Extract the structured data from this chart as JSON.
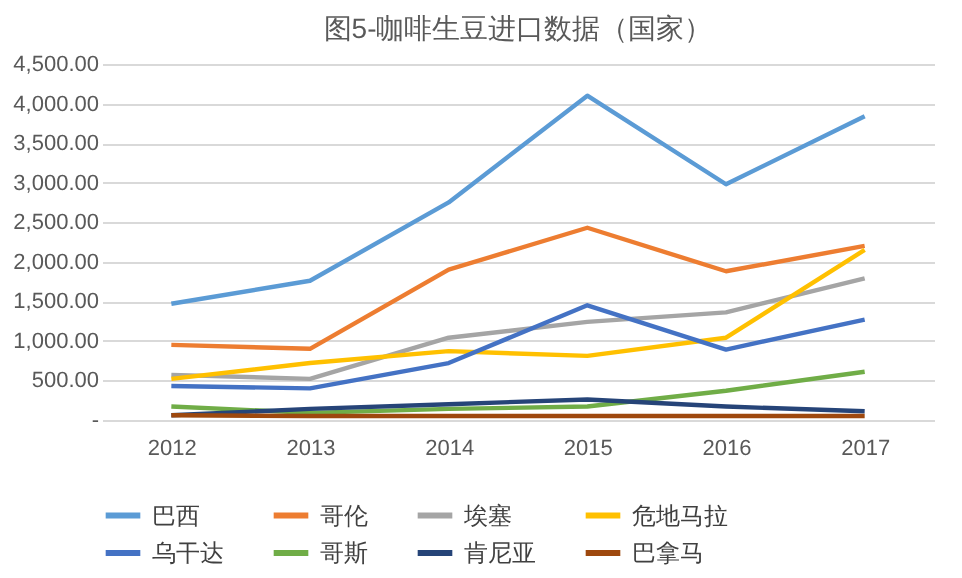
{
  "chart_data": {
    "type": "line",
    "title": "图5-咖啡生豆进口数据（国家）",
    "categories": [
      "2012",
      "2013",
      "2014",
      "2015",
      "2016",
      "2017"
    ],
    "series": [
      {
        "name": "巴西",
        "color": "#5b9bd5",
        "values": [
          1470,
          1760,
          2750,
          4100,
          2980,
          3840
        ]
      },
      {
        "name": "哥伦",
        "color": "#ed7d31",
        "values": [
          950,
          900,
          1900,
          2430,
          1880,
          2200
        ]
      },
      {
        "name": "埃塞",
        "color": "#a5a5a5",
        "values": [
          570,
          520,
          1040,
          1240,
          1360,
          1790
        ]
      },
      {
        "name": "危地马拉",
        "color": "#ffc000",
        "values": [
          520,
          720,
          870,
          810,
          1040,
          2150
        ]
      },
      {
        "name": "乌干达",
        "color": "#4472c4",
        "values": [
          430,
          400,
          720,
          1450,
          890,
          1270
        ]
      },
      {
        "name": "哥斯",
        "color": "#70ad47",
        "values": [
          170,
          90,
          140,
          170,
          370,
          610
        ]
      },
      {
        "name": "肯尼亚",
        "color": "#264478",
        "values": [
          60,
          140,
          200,
          260,
          170,
          110
        ]
      },
      {
        "name": "巴拿马",
        "color": "#9e480e",
        "values": [
          60,
          50,
          50,
          50,
          50,
          50
        ]
      }
    ],
    "ylim": [
      0,
      4500
    ],
    "yticks": [
      {
        "value": 0,
        "label": "-"
      },
      {
        "value": 500,
        "label": "500.00"
      },
      {
        "value": 1000,
        "label": "1,000.00"
      },
      {
        "value": 1500,
        "label": "1,500.00"
      },
      {
        "value": 2000,
        "label": "2,000.00"
      },
      {
        "value": 2500,
        "label": "2,500.00"
      },
      {
        "value": 3000,
        "label": "3,000.00"
      },
      {
        "value": 3500,
        "label": "3,500.00"
      },
      {
        "value": 4000,
        "label": "4,000.00"
      },
      {
        "value": 4500,
        "label": "4,500.00"
      }
    ],
    "grid": "y",
    "legend": "bottom",
    "marker": "none",
    "line_style": "solid"
  }
}
